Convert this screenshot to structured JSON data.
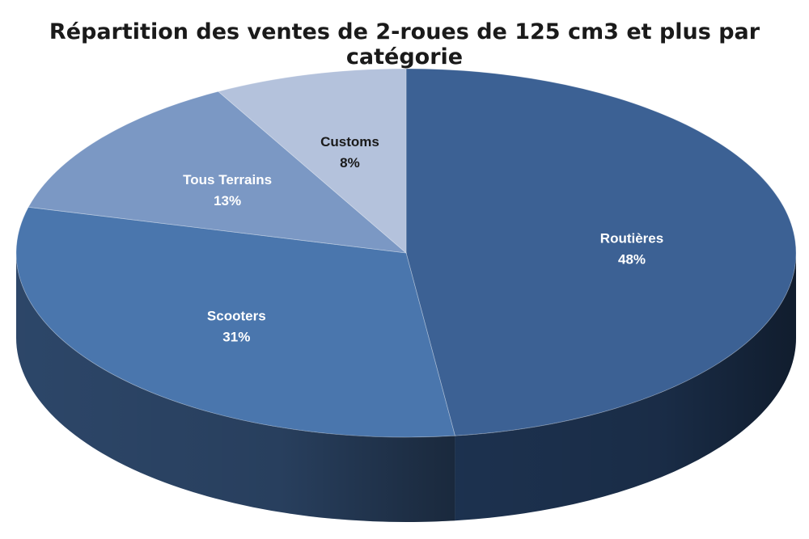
{
  "chart_data": {
    "type": "pie",
    "title": "Répartition des ventes de 2-roues de 125 cm3 et plus par catégorie",
    "slices": [
      {
        "label": "Routières",
        "value": 48,
        "value_label": "48%",
        "color": "#3c6194",
        "side_color": "#1e3453",
        "text_color": "#ffffff"
      },
      {
        "label": "Scooters",
        "value": 31,
        "value_label": "31%",
        "color": "#4a76ad",
        "side_color": "#2f4a6e",
        "text_color": "#ffffff"
      },
      {
        "label": "Tous Terrains",
        "value": 13,
        "value_label": "13%",
        "color": "#7b98c4",
        "side_color": "#55709a",
        "text_color": "#ffffff"
      },
      {
        "label": "Customs",
        "value": 8,
        "value_label": "8%",
        "color": "#b4c2dc",
        "side_color": "#8a9cbd",
        "text_color": "#1a1a1a"
      }
    ]
  }
}
